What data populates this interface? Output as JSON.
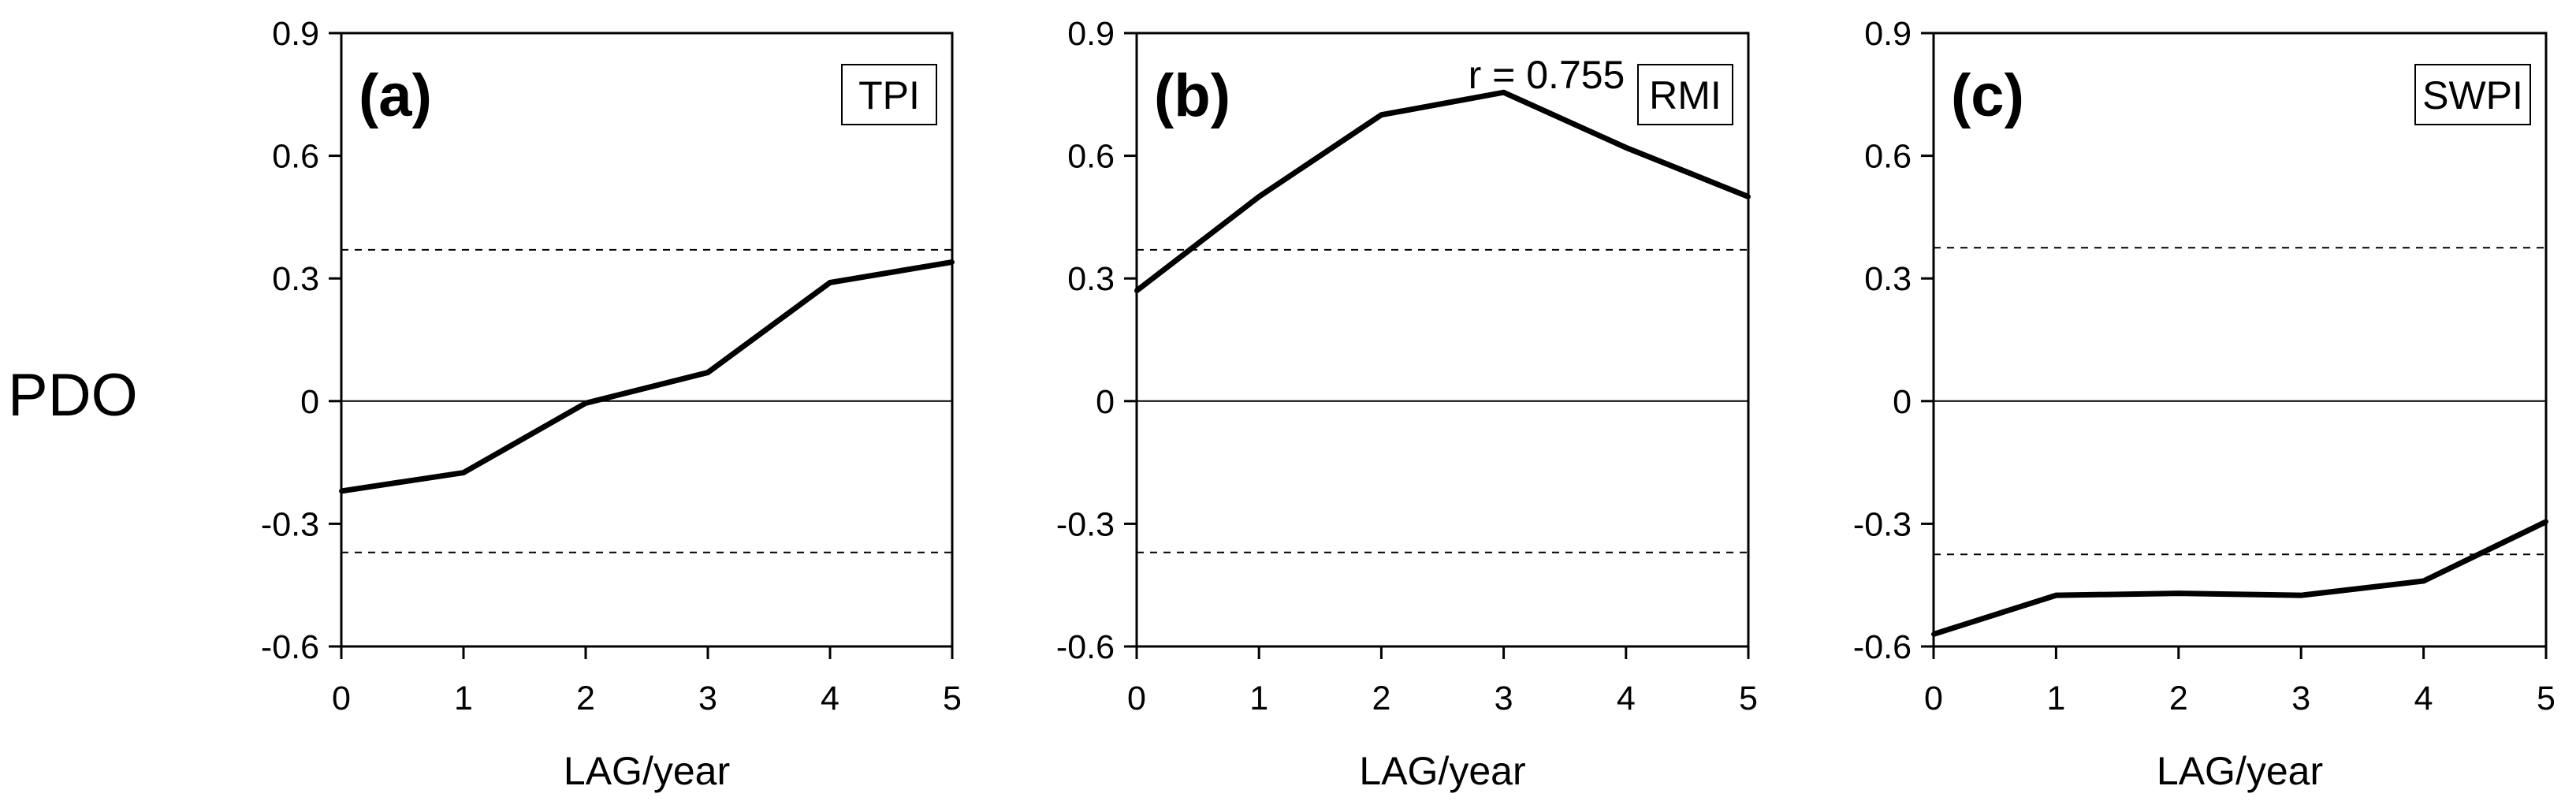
{
  "figure": {
    "shared_ylabel": "PDO"
  },
  "chart_data": [
    {
      "type": "line",
      "panel": "(a)",
      "index_name": "TPI",
      "xlabel": "LAG/year",
      "ylabel": "PDO",
      "x": [
        0,
        1,
        2,
        3,
        4,
        5
      ],
      "values": [
        -0.22,
        -0.175,
        -0.005,
        0.07,
        0.29,
        0.34
      ],
      "xlim": [
        0,
        5
      ],
      "ylim": [
        -0.6,
        0.9
      ],
      "xticks": [
        "0",
        "1",
        "2",
        "3",
        "4",
        "5"
      ],
      "yticks": [
        "0.9",
        "0.6",
        "0.3",
        "0",
        "-0.3",
        "-0.6"
      ],
      "significance": [
        0.37,
        -0.37
      ],
      "annotation": ""
    },
    {
      "type": "line",
      "panel": "(b)",
      "index_name": "RMI",
      "xlabel": "LAG/year",
      "ylabel": "PDO",
      "x": [
        0,
        1,
        2,
        3,
        4,
        5
      ],
      "values": [
        0.27,
        0.5,
        0.7,
        0.755,
        0.62,
        0.5
      ],
      "xlim": [
        0,
        5
      ],
      "ylim": [
        -0.6,
        0.9
      ],
      "xticks": [
        "0",
        "1",
        "2",
        "3",
        "4",
        "5"
      ],
      "yticks": [
        "0.9",
        "0.6",
        "0.3",
        "0",
        "-0.3",
        "-0.6"
      ],
      "significance": [
        0.37,
        -0.37
      ],
      "annotation": "r = 0.755"
    },
    {
      "type": "line",
      "panel": "(c)",
      "index_name": "SWPI",
      "xlabel": "LAG/year",
      "ylabel": "PDO",
      "x": [
        0,
        1,
        2,
        3,
        4,
        5
      ],
      "values": [
        -0.57,
        -0.475,
        -0.47,
        -0.475,
        -0.44,
        -0.295
      ],
      "xlim": [
        0,
        5
      ],
      "ylim": [
        -0.6,
        0.9
      ],
      "xticks": [
        "0",
        "1",
        "2",
        "3",
        "4",
        "5"
      ],
      "yticks": [
        "0.9",
        "0.6",
        "0.3",
        "0",
        "-0.3",
        "-0.6"
      ],
      "significance": [
        0.375,
        -0.375
      ],
      "annotation": ""
    }
  ]
}
